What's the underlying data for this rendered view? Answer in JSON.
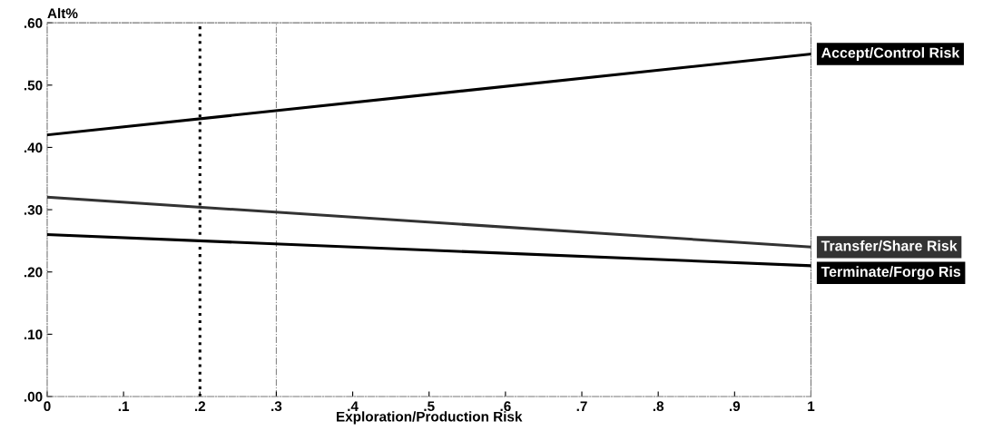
{
  "chart_data": {
    "type": "line",
    "xlabel": "Exploration/Production Risk",
    "ylabel": "Alt%",
    "x": [
      0,
      1
    ],
    "series": [
      {
        "name": "Accept/Control Risk",
        "color": "#000000",
        "values": [
          0.42,
          0.55
        ]
      },
      {
        "name": "Transfer/Share Risk",
        "color": "#333333",
        "values": [
          0.32,
          0.24
        ]
      },
      {
        "name": "Terminate/Forgo Ris",
        "color": "#000000",
        "values": [
          0.26,
          0.21
        ]
      }
    ],
    "xlim": [
      0,
      1
    ],
    "xticks": [
      0,
      {
        "value": 0.1,
        "label": ".1"
      },
      {
        "value": 0.2,
        "label": ".2"
      },
      {
        "value": 0.3,
        "label": ".3"
      },
      {
        "value": 0.4,
        "label": ".4"
      },
      {
        "value": 0.5,
        "label": ".5"
      },
      {
        "value": 0.6,
        "label": ".6"
      },
      {
        "value": 0.7,
        "label": ".7"
      },
      {
        "value": 0.8,
        "label": ".8"
      },
      {
        "value": 0.9,
        "label": ".9"
      },
      1
    ],
    "ylim": [
      0,
      0.6
    ],
    "yticks": [
      {
        "value": 0,
        "label": ".00"
      },
      {
        "value": 0.1,
        "label": ".10"
      },
      {
        "value": 0.2,
        "label": ".20"
      },
      {
        "value": 0.3,
        "label": ".30"
      },
      {
        "value": 0.4,
        "label": ".40"
      },
      {
        "value": 0.5,
        "label": ".50"
      },
      {
        "value": 0.6,
        "label": ".60"
      }
    ],
    "ref_lines": [
      {
        "axis": "x",
        "value": 0.2,
        "color": "#000000",
        "line_style": "dotted"
      },
      {
        "axis": "x",
        "value": 0.3,
        "color": "#888888",
        "line_style": "dashdot"
      }
    ],
    "grid": false,
    "legend": false,
    "marker": "none",
    "line_style": "solid"
  }
}
